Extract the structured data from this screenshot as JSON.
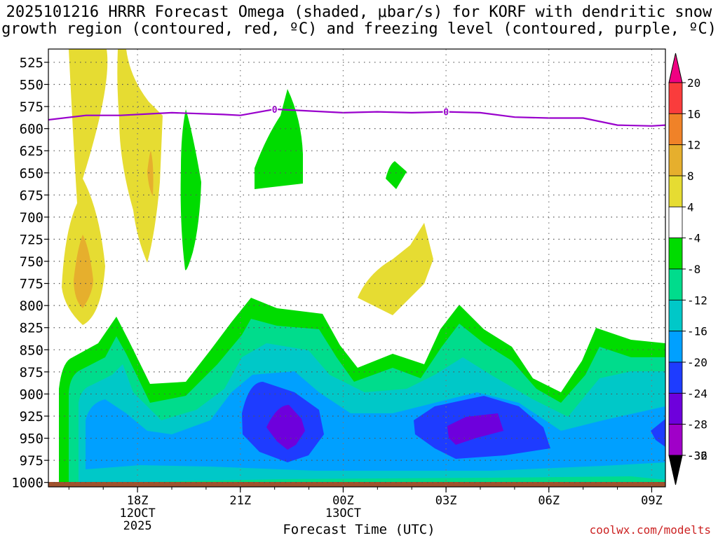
{
  "chart_data": {
    "type": "heatmap",
    "title_line1": "2025101216 HRRR Forecast Omega (shaded, μbar/s) for KORF with dendritic snow",
    "title_line2": "growth region (contoured, red, ºC) and freezing level (contoured, purple, ºC)",
    "xlabel": "Forecast Time (UTC)",
    "ylabel": "",
    "credit": "coolwx.com/modelts",
    "y_ticks": [
      525,
      550,
      575,
      600,
      625,
      650,
      675,
      700,
      725,
      750,
      775,
      800,
      825,
      850,
      875,
      900,
      925,
      950,
      975,
      1000
    ],
    "y_range_hPa": [
      510,
      1005
    ],
    "x_range_hours_from_16Z": [
      -0.6,
      17.4
    ],
    "x_ticks": [
      {
        "hour": 2,
        "label": "18Z",
        "sub1": "12OCT",
        "sub2": "2025"
      },
      {
        "hour": 5,
        "label": "21Z",
        "sub1": "",
        "sub2": ""
      },
      {
        "hour": 8,
        "label": "00Z",
        "sub1": "13OCT",
        "sub2": ""
      },
      {
        "hour": 11,
        "label": "03Z",
        "sub1": "",
        "sub2": ""
      },
      {
        "hour": 14,
        "label": "06Z",
        "sub1": "",
        "sub2": ""
      },
      {
        "hour": 17,
        "label": "09Z",
        "sub1": "",
        "sub2": ""
      }
    ],
    "colorbar": {
      "levels": [
        -36,
        -32,
        -28,
        -24,
        -20,
        -16,
        -12,
        -8,
        -4,
        4,
        8,
        12,
        16,
        20
      ],
      "labels": [
        "20",
        "16",
        "12",
        "8",
        "4",
        "-4",
        "-8",
        "-12",
        "-16",
        "-20",
        "-24",
        "-28",
        "-32",
        "-36"
      ],
      "colors": {
        "below_-32": "#a9a9a9",
        "-32_-28": "#a000c8",
        "-28_-24": "#6e00dc",
        "-24_-20": "#1e3cff",
        "-20_-16": "#00a0ff",
        "-16_-12": "#00c8c8",
        "-12_-8": "#00dc8c",
        "-8_-4": "#00dc00",
        "-4_4": "#ffffff",
        "4_8": "#e6dc32",
        "8_12": "#e6af2d",
        "12_16": "#f08228",
        "16_20": "#fa3c3c",
        "above_20": "#f00082",
        "top_arrow": "#f00082",
        "bottom_arrow": "#000000"
      }
    },
    "freezing_level": {
      "value_label": "0",
      "color": "#9900cc",
      "points_hour_hPa": [
        [
          -0.6,
          590
        ],
        [
          0.5,
          585
        ],
        [
          1.5,
          585
        ],
        [
          3,
          582
        ],
        [
          4.5,
          584
        ],
        [
          5,
          585
        ],
        [
          6,
          578
        ],
        [
          7,
          580
        ],
        [
          8,
          582
        ],
        [
          9,
          581
        ],
        [
          10,
          582
        ],
        [
          11,
          581
        ],
        [
          12,
          582
        ],
        [
          13,
          587
        ],
        [
          14,
          588
        ],
        [
          15,
          588
        ],
        [
          16,
          596
        ],
        [
          17,
          597
        ],
        [
          17.4,
          596
        ]
      ],
      "label_positions_hour": [
        6,
        11
      ]
    },
    "ground_band_color": "#a0522d",
    "omega_regions": [
      {
        "name": "lower-green",
        "value_range": "-8 to -4",
        "color": "#00dc00"
      },
      {
        "name": "lower-teal-green",
        "value_range": "-12 to -8",
        "color": "#00dc8c"
      },
      {
        "name": "lower-cyan",
        "value_range": "-16 to -12",
        "color": "#00c8c8"
      },
      {
        "name": "lower-blue",
        "value_range": "-20 to -16",
        "color": "#00a0ff"
      },
      {
        "name": "lower-dark-blue",
        "value_range": "-24 to -20",
        "color": "#1e3cff"
      },
      {
        "name": "lower-purple",
        "value_range": "-28 to -24",
        "color": "#6e00dc"
      },
      {
        "name": "upper-yellow",
        "value_range": "4 to 8",
        "color": "#e6dc32"
      },
      {
        "name": "upper-orange",
        "value_range": "8 to 12",
        "color": "#e6af2d"
      },
      {
        "name": "upper-green",
        "value_range": "-8 to -4",
        "color": "#00dc00"
      }
    ]
  }
}
